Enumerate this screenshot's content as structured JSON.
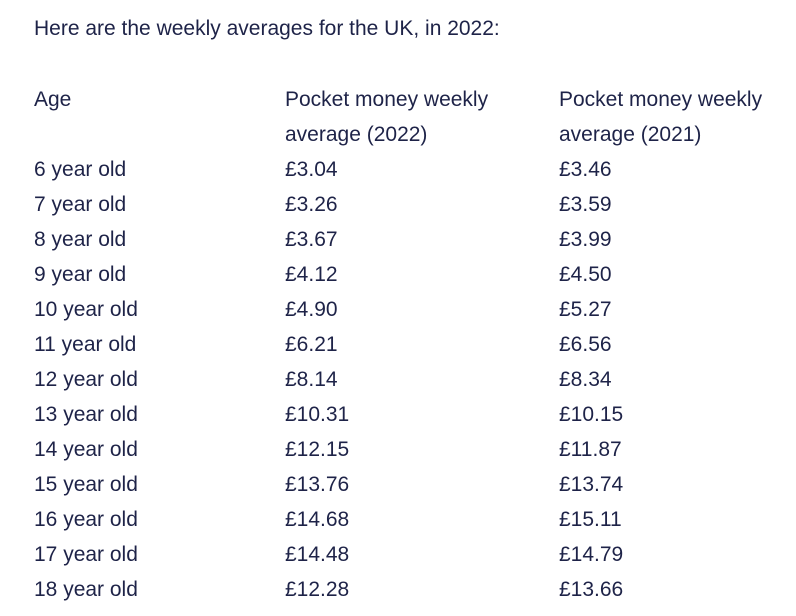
{
  "intro": "Here are the weekly averages for the UK, in 2022:",
  "table": {
    "headers": {
      "age": "Age",
      "col2022_line1": "Pocket money weekly",
      "col2022_line2": "average (2022)",
      "col2021_line1": "Pocket money weekly",
      "col2021_line2": "average (2021)"
    },
    "rows": [
      {
        "age": "6 year old",
        "v2022": "£3.04",
        "v2021": "£3.46"
      },
      {
        "age": "7 year old",
        "v2022": "£3.26",
        "v2021": "£3.59"
      },
      {
        "age": "8 year old",
        "v2022": "£3.67",
        "v2021": "£3.99"
      },
      {
        "age": "9 year old",
        "v2022": "£4.12",
        "v2021": "£4.50"
      },
      {
        "age": "10 year old",
        "v2022": "£4.90",
        "v2021": "£5.27"
      },
      {
        "age": "11 year old",
        "v2022": "£6.21",
        "v2021": "£6.56"
      },
      {
        "age": "12 year old",
        "v2022": "£8.14",
        "v2021": "£8.34"
      },
      {
        "age": "13 year old",
        "v2022": "£10.31",
        "v2021": "£10.15"
      },
      {
        "age": "14 year old",
        "v2022": "£12.15",
        "v2021": "£11.87"
      },
      {
        "age": "15 year old",
        "v2022": "£13.76",
        "v2021": "£13.74"
      },
      {
        "age": "16 year old",
        "v2022": "£14.68",
        "v2021": "£15.11"
      },
      {
        "age": "17 year old",
        "v2022": "£14.48",
        "v2021": "£14.79"
      },
      {
        "age": "18 year old",
        "v2022": "£12.28",
        "v2021": "£13.66"
      }
    ]
  }
}
